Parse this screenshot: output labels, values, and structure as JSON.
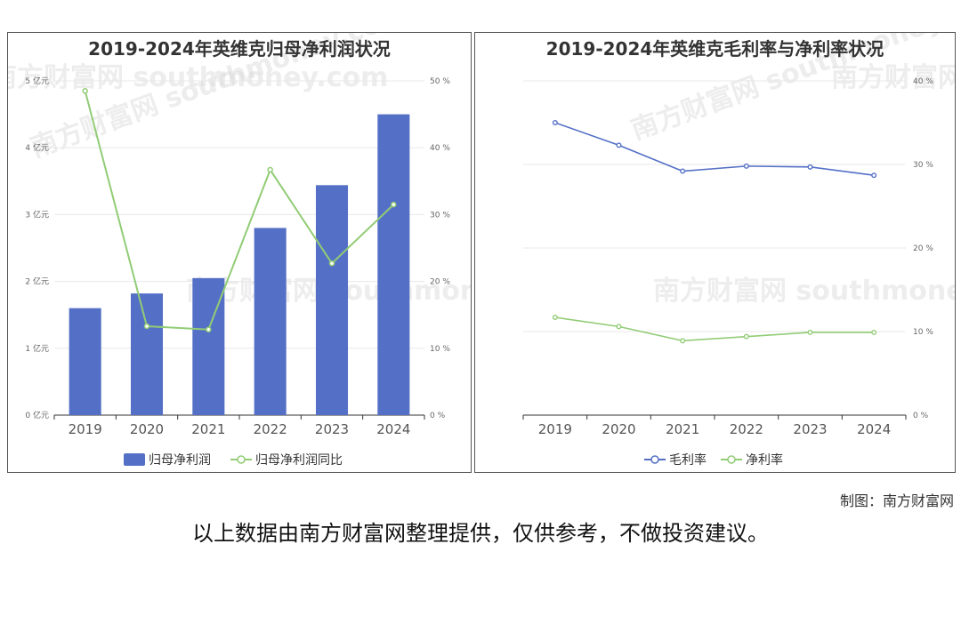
{
  "chart_data": [
    {
      "type": "bar",
      "title": "2019-2024年英维克归母净利润状况",
      "categories": [
        "2019",
        "2020",
        "2021",
        "2022",
        "2023",
        "2024"
      ],
      "series": [
        {
          "name": "归母净利润",
          "kind": "bar",
          "axis": "left",
          "color": "#5470c6",
          "values": [
            1.6,
            1.82,
            2.05,
            2.8,
            3.44,
            4.5
          ]
        },
        {
          "name": "归母净利润同比",
          "kind": "line",
          "axis": "right",
          "color": "#91cc75",
          "values": [
            48.5,
            13.3,
            12.8,
            36.7,
            22.7,
            31.5
          ]
        }
      ],
      "left_axis": {
        "ticks": [
          "0 亿元",
          "1 亿元",
          "2 亿元",
          "3 亿元",
          "4 亿元",
          "5 亿元"
        ],
        "range": [
          0,
          5
        ]
      },
      "right_axis": {
        "ticks": [
          "0 %",
          "10 %",
          "20 %",
          "30 %",
          "40 %",
          "50 %"
        ],
        "range": [
          0,
          50
        ]
      },
      "legend": "bottom-center",
      "grid": true
    },
    {
      "type": "line",
      "title": "2019-2024年英维克毛利率与净利率状况",
      "categories": [
        "2019",
        "2020",
        "2021",
        "2022",
        "2023",
        "2024"
      ],
      "series": [
        {
          "name": "毛利率",
          "color": "#5470c6",
          "values": [
            35.0,
            32.3,
            29.2,
            29.8,
            29.7,
            28.7
          ]
        },
        {
          "name": "净利率",
          "color": "#91cc75",
          "values": [
            11.7,
            10.6,
            8.9,
            9.4,
            9.9,
            9.9
          ]
        }
      ],
      "right_axis": {
        "ticks": [
          "0 %",
          "10 %",
          "20 %",
          "30 %",
          "40 %"
        ],
        "range": [
          0,
          40
        ]
      },
      "legend": "bottom-center",
      "grid": true
    }
  ],
  "watermark": "南方财富网 southmoney.com",
  "credit": "制图：南方财富网",
  "disclaimer": "以上数据由南方财富网整理提供，仅供参考，不做投资建议。"
}
